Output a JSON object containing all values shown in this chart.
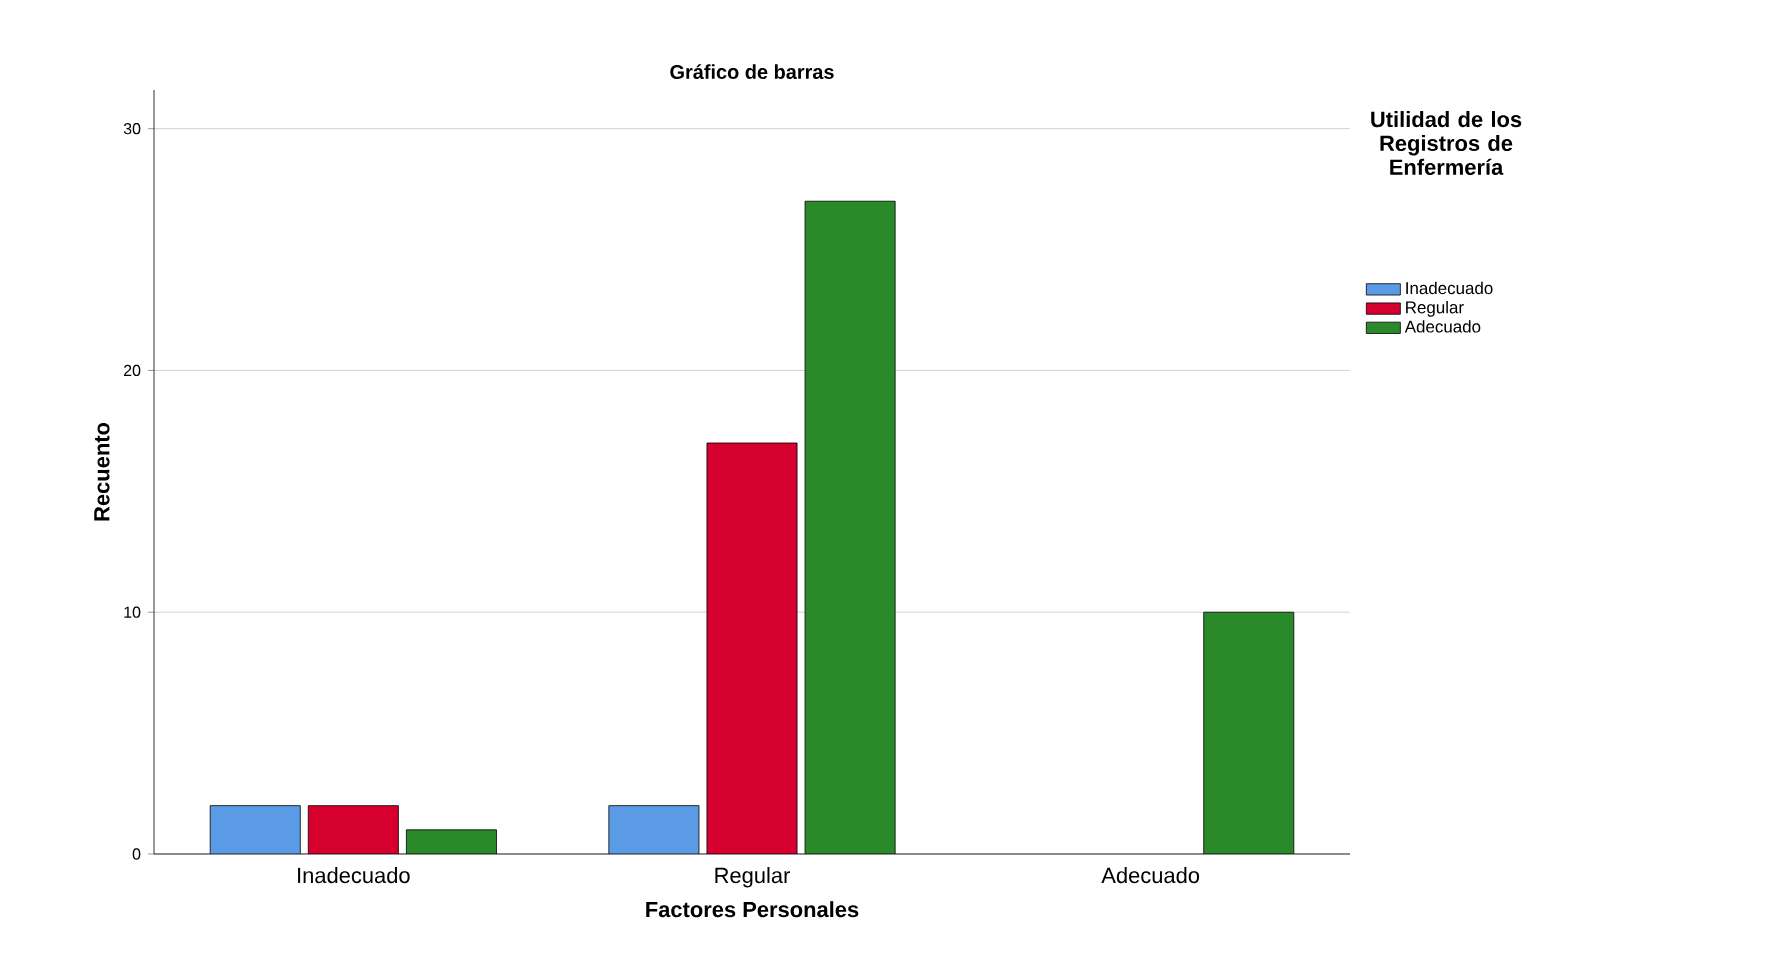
{
  "chart_data": {
    "type": "bar",
    "title": "Gráfico de barras",
    "xlabel": "Factores Personales",
    "ylabel": "Recuento",
    "legend_title": "Utilidad de los Registros de Enfermería",
    "categories": [
      "Inadecuado",
      "Regular",
      "Adecuado"
    ],
    "series": [
      {
        "name": "Inadecuado",
        "color": "#5b9be6",
        "values": [
          2,
          2,
          null
        ]
      },
      {
        "name": "Regular",
        "color": "#d6002f",
        "values": [
          2,
          17,
          null
        ]
      },
      {
        "name": "Adecuado",
        "color": "#2a8a2a",
        "values": [
          1,
          27,
          10
        ]
      }
    ],
    "ylim": [
      0,
      31.6
    ],
    "yticks": [
      0,
      10,
      20,
      30
    ],
    "grid": "y",
    "legend": "right"
  }
}
